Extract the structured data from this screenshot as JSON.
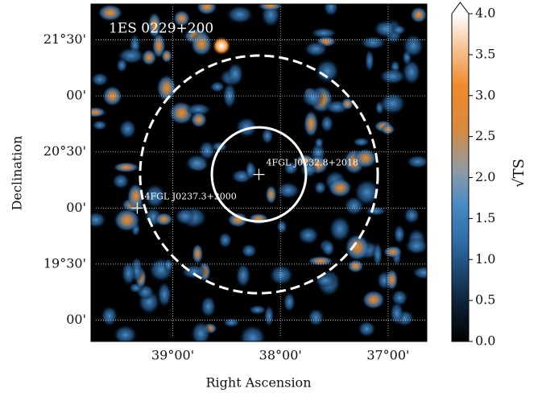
{
  "chart_data": {
    "type": "skymap",
    "title": "1ES 0229+200",
    "xlabel": "Right Ascension",
    "ylabel": "Declination",
    "colorbar_label": "√TS",
    "xlim": [
      39.76,
      36.64
    ],
    "ylim": [
      18.81,
      21.82
    ],
    "xticks": [
      {
        "value": 39,
        "label": "39°00'"
      },
      {
        "value": 38,
        "label": "38°00'"
      },
      {
        "value": 37,
        "label": "37°00'"
      }
    ],
    "yticks": [
      {
        "value": 21.5,
        "label": "21°30'"
      },
      {
        "value": 21,
        "label": "00'"
      },
      {
        "value": 20.5,
        "label": "20°30'"
      },
      {
        "value": 20,
        "label": "00'"
      },
      {
        "value": 19.5,
        "label": "19°30'"
      },
      {
        "value": 19,
        "label": "00'"
      }
    ],
    "clim": [
      0,
      4
    ],
    "cticks": [
      {
        "value": 0,
        "label": "0.0"
      },
      0.5,
      {
        "value": 1,
        "label": "1.0"
      },
      1.5,
      {
        "value": 2,
        "label": "2.0"
      },
      2.5,
      {
        "value": 3,
        "label": "3.0"
      },
      3.5,
      {
        "value": 4,
        "label": "4.0"
      }
    ],
    "grid": true,
    "sources": [
      {
        "name": "4FGL J0232.8+2018",
        "ra": 38.2,
        "dec": 20.3
      },
      {
        "name": "4FGL J0237.3+2000",
        "ra": 39.33,
        "dec": 20.0
      }
    ],
    "circles": [
      {
        "ra": 38.2,
        "dec": 20.3,
        "radius": 0.42,
        "style": "solid"
      },
      {
        "ra": 38.2,
        "dec": 20.3,
        "radius": 1.06,
        "style": "dashed"
      }
    ]
  }
}
